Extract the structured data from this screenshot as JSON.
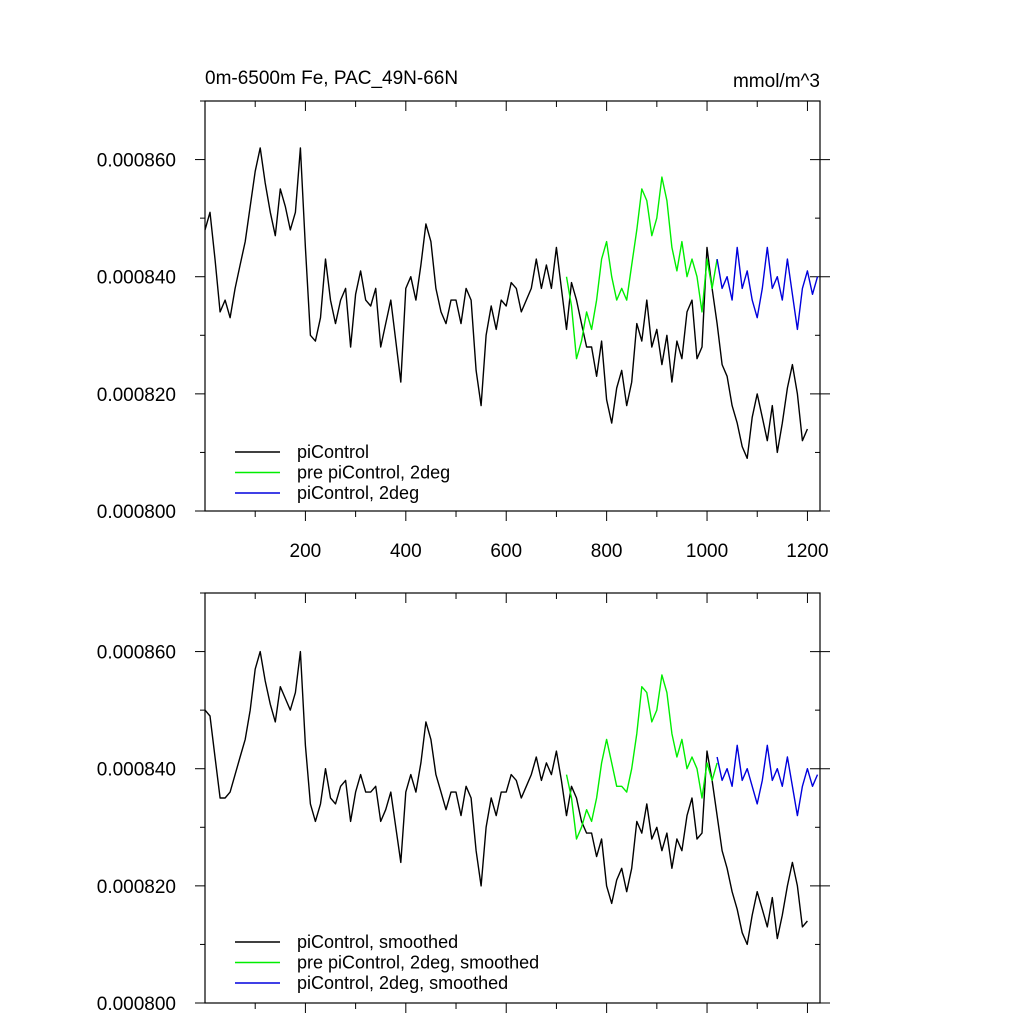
{
  "figure": {
    "title_left": "0m-6500m Fe, PAC_49N-66N",
    "title_right": "mmol/m^3"
  },
  "chart_data": [
    {
      "type": "line",
      "title": "0m-6500m Fe, PAC_49N-66N",
      "units": "mmol/m^3",
      "xlim": [
        0,
        1225
      ],
      "ylim": [
        0.0008,
        0.00087
      ],
      "x_ticks": [
        "200",
        "400",
        "600",
        "800",
        "1000",
        "1200"
      ],
      "y_ticks": [
        "0.000800",
        "0.000820",
        "0.000840",
        "0.000860"
      ],
      "legend_position": "bottom-left",
      "series": [
        {
          "name": "piControl",
          "color": "#000000",
          "x": [
            0,
            10,
            20,
            30,
            40,
            50,
            60,
            70,
            80,
            90,
            100,
            110,
            120,
            130,
            140,
            150,
            160,
            170,
            180,
            190,
            200,
            210,
            220,
            230,
            240,
            250,
            260,
            270,
            280,
            290,
            300,
            310,
            320,
            330,
            340,
            350,
            360,
            370,
            380,
            390,
            400,
            410,
            420,
            430,
            440,
            450,
            460,
            470,
            480,
            490,
            500,
            510,
            520,
            530,
            540,
            550,
            560,
            570,
            580,
            590,
            600,
            610,
            620,
            630,
            640,
            650,
            660,
            670,
            680,
            690,
            700,
            710,
            720,
            730,
            740,
            750,
            760,
            770,
            780,
            790,
            800,
            810,
            820,
            830,
            840,
            850,
            860,
            870,
            880,
            890,
            900,
            910,
            920,
            930,
            940,
            950,
            960,
            970,
            980,
            990,
            1000,
            1010,
            1020,
            1030,
            1040,
            1050,
            1060,
            1070,
            1080,
            1090,
            1100,
            1110,
            1120,
            1130,
            1140,
            1150,
            1160,
            1170,
            1180,
            1190,
            1200
          ],
          "values": [
            0.000848,
            0.000851,
            0.000843,
            0.000834,
            0.000836,
            0.000833,
            0.000838,
            0.000842,
            0.000846,
            0.000852,
            0.000858,
            0.000862,
            0.000856,
            0.000851,
            0.000847,
            0.000855,
            0.000852,
            0.000848,
            0.000851,
            0.000862,
            0.000845,
            0.00083,
            0.000829,
            0.000833,
            0.000843,
            0.000836,
            0.000832,
            0.000836,
            0.000838,
            0.000828,
            0.000837,
            0.000841,
            0.000836,
            0.000835,
            0.000838,
            0.000828,
            0.000832,
            0.000836,
            0.000829,
            0.000822,
            0.000838,
            0.00084,
            0.000836,
            0.000842,
            0.000849,
            0.000846,
            0.000838,
            0.000834,
            0.000832,
            0.000836,
            0.000836,
            0.000832,
            0.000838,
            0.000836,
            0.000824,
            0.000818,
            0.00083,
            0.000835,
            0.000831,
            0.000836,
            0.000835,
            0.000839,
            0.000838,
            0.000834,
            0.000836,
            0.000838,
            0.000843,
            0.000838,
            0.000842,
            0.000838,
            0.000845,
            0.000838,
            0.000831,
            0.000839,
            0.000836,
            0.000832,
            0.000828,
            0.000828,
            0.000823,
            0.000829,
            0.000819,
            0.000815,
            0.000821,
            0.000824,
            0.000818,
            0.000822,
            0.000832,
            0.000829,
            0.000836,
            0.000828,
            0.000831,
            0.000825,
            0.00083,
            0.000822,
            0.000829,
            0.000826,
            0.000834,
            0.000836,
            0.000826,
            0.000828,
            0.000845,
            0.000838,
            0.000832,
            0.000825,
            0.000823,
            0.000818,
            0.000815,
            0.000811,
            0.000809,
            0.000816,
            0.00082,
            0.000816,
            0.000812,
            0.000818,
            0.00081,
            0.000815,
            0.000821,
            0.000825,
            0.00082,
            0.000812,
            0.000814
          ]
        },
        {
          "name": "pre piControl, 2deg",
          "color": "#00ee00",
          "x": [
            720,
            730,
            740,
            750,
            760,
            770,
            780,
            790,
            800,
            810,
            820,
            830,
            840,
            850,
            860,
            870,
            880,
            890,
            900,
            910,
            920,
            930,
            940,
            950,
            960,
            970,
            980,
            990,
            1000,
            1010,
            1020
          ],
          "values": [
            0.00084,
            0.000835,
            0.000826,
            0.000829,
            0.000834,
            0.000831,
            0.000836,
            0.000843,
            0.000846,
            0.00084,
            0.000836,
            0.000838,
            0.000836,
            0.000842,
            0.000848,
            0.000855,
            0.000853,
            0.000847,
            0.00085,
            0.000857,
            0.000853,
            0.000845,
            0.000841,
            0.000846,
            0.00084,
            0.000843,
            0.00084,
            0.000834,
            0.000843,
            0.000838,
            0.000843
          ]
        },
        {
          "name": "piControl, 2deg",
          "color": "#0000dd",
          "x": [
            1020,
            1030,
            1040,
            1050,
            1060,
            1070,
            1080,
            1090,
            1100,
            1110,
            1120,
            1130,
            1140,
            1150,
            1160,
            1170,
            1180,
            1190,
            1200,
            1210,
            1220
          ],
          "values": [
            0.000843,
            0.000838,
            0.00084,
            0.000836,
            0.000845,
            0.000838,
            0.000841,
            0.000836,
            0.000833,
            0.000838,
            0.000845,
            0.000838,
            0.00084,
            0.000836,
            0.000843,
            0.000837,
            0.000831,
            0.000838,
            0.000841,
            0.000837,
            0.00084
          ]
        }
      ]
    },
    {
      "type": "line",
      "xlim": [
        0,
        1225
      ],
      "ylim": [
        0.0008,
        0.00087
      ],
      "y_ticks": [
        "0.000800",
        "0.000820",
        "0.000840",
        "0.000860"
      ],
      "legend_position": "bottom-left",
      "series": [
        {
          "name": "piControl, smoothed",
          "color": "#000000",
          "x": [
            0,
            10,
            20,
            30,
            40,
            50,
            60,
            70,
            80,
            90,
            100,
            110,
            120,
            130,
            140,
            150,
            160,
            170,
            180,
            190,
            200,
            210,
            220,
            230,
            240,
            250,
            260,
            270,
            280,
            290,
            300,
            310,
            320,
            330,
            340,
            350,
            360,
            370,
            380,
            390,
            400,
            410,
            420,
            430,
            440,
            450,
            460,
            470,
            480,
            490,
            500,
            510,
            520,
            530,
            540,
            550,
            560,
            570,
            580,
            590,
            600,
            610,
            620,
            630,
            640,
            650,
            660,
            670,
            680,
            690,
            700,
            710,
            720,
            730,
            740,
            750,
            760,
            770,
            780,
            790,
            800,
            810,
            820,
            830,
            840,
            850,
            860,
            870,
            880,
            890,
            900,
            910,
            920,
            930,
            940,
            950,
            960,
            970,
            980,
            990,
            1000,
            1010,
            1020,
            1030,
            1040,
            1050,
            1060,
            1070,
            1080,
            1090,
            1100,
            1110,
            1120,
            1130,
            1140,
            1150,
            1160,
            1170,
            1180,
            1190,
            1200
          ],
          "values": [
            0.00085,
            0.000849,
            0.000842,
            0.000835,
            0.000835,
            0.000836,
            0.000839,
            0.000842,
            0.000845,
            0.00085,
            0.000857,
            0.00086,
            0.000855,
            0.000851,
            0.000848,
            0.000854,
            0.000852,
            0.00085,
            0.000853,
            0.00086,
            0.000844,
            0.000834,
            0.000831,
            0.000834,
            0.00084,
            0.000835,
            0.000834,
            0.000837,
            0.000838,
            0.000831,
            0.000836,
            0.000839,
            0.000836,
            0.000836,
            0.000837,
            0.000831,
            0.000833,
            0.000836,
            0.00083,
            0.000824,
            0.000836,
            0.000839,
            0.000836,
            0.000841,
            0.000848,
            0.000845,
            0.000839,
            0.000836,
            0.000833,
            0.000836,
            0.000836,
            0.000832,
            0.000837,
            0.000835,
            0.000826,
            0.00082,
            0.00083,
            0.000835,
            0.000832,
            0.000836,
            0.000836,
            0.000839,
            0.000838,
            0.000835,
            0.000837,
            0.000839,
            0.000842,
            0.000838,
            0.000841,
            0.000839,
            0.000843,
            0.000838,
            0.000832,
            0.000837,
            0.000835,
            0.000831,
            0.000829,
            0.000829,
            0.000825,
            0.000828,
            0.00082,
            0.000817,
            0.000821,
            0.000823,
            0.000819,
            0.000823,
            0.000831,
            0.000829,
            0.000834,
            0.000828,
            0.00083,
            0.000826,
            0.000829,
            0.000823,
            0.000828,
            0.000826,
            0.000832,
            0.000835,
            0.000828,
            0.000829,
            0.000843,
            0.000838,
            0.000832,
            0.000826,
            0.000823,
            0.000819,
            0.000816,
            0.000812,
            0.00081,
            0.000815,
            0.000819,
            0.000816,
            0.000813,
            0.000818,
            0.000811,
            0.000815,
            0.00082,
            0.000824,
            0.00082,
            0.000813,
            0.000814
          ]
        },
        {
          "name": "pre piControl, 2deg, smoothed",
          "color": "#00ee00",
          "x": [
            720,
            730,
            740,
            750,
            760,
            770,
            780,
            790,
            800,
            810,
            820,
            830,
            840,
            850,
            860,
            870,
            880,
            890,
            900,
            910,
            920,
            930,
            940,
            950,
            960,
            970,
            980,
            990,
            1000,
            1010,
            1020
          ],
          "values": [
            0.000839,
            0.000835,
            0.000828,
            0.00083,
            0.000833,
            0.000831,
            0.000835,
            0.000841,
            0.000845,
            0.000841,
            0.000837,
            0.000837,
            0.000836,
            0.00084,
            0.000846,
            0.000854,
            0.000853,
            0.000848,
            0.00085,
            0.000856,
            0.000853,
            0.000846,
            0.000842,
            0.000845,
            0.00084,
            0.000842,
            0.00084,
            0.000835,
            0.000841,
            0.000838,
            0.000841
          ]
        },
        {
          "name": "piControl, 2deg, smoothed",
          "color": "#0000dd",
          "x": [
            1020,
            1030,
            1040,
            1050,
            1060,
            1070,
            1080,
            1090,
            1100,
            1110,
            1120,
            1130,
            1140,
            1150,
            1160,
            1170,
            1180,
            1190,
            1200,
            1210,
            1220
          ],
          "values": [
            0.000842,
            0.000838,
            0.00084,
            0.000837,
            0.000844,
            0.000838,
            0.00084,
            0.000837,
            0.000834,
            0.000838,
            0.000844,
            0.000838,
            0.00084,
            0.000837,
            0.000842,
            0.000837,
            0.000832,
            0.000837,
            0.00084,
            0.000837,
            0.000839
          ]
        }
      ]
    }
  ]
}
